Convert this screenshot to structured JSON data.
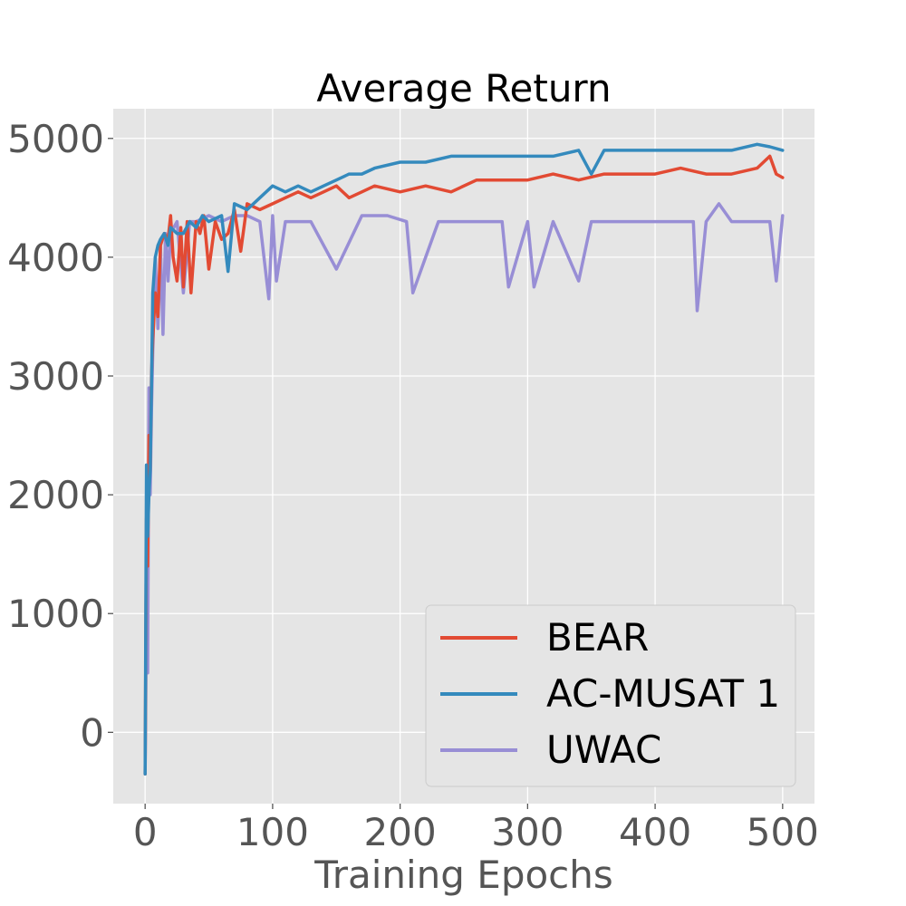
{
  "chart_data": {
    "type": "line",
    "title": "Average Return",
    "xlabel": "Training Epochs",
    "ylabel": "",
    "xlim": [
      -25,
      525
    ],
    "ylim": [
      -600,
      5250
    ],
    "xticks": [
      0,
      100,
      200,
      300,
      400,
      500
    ],
    "yticks": [
      0,
      1000,
      2000,
      3000,
      4000,
      5000
    ],
    "grid": true,
    "legend_position": "lower-right",
    "series": [
      {
        "name": "BEAR",
        "color": "#E24A33",
        "x": [
          0,
          1,
          2,
          3,
          4,
          5,
          6,
          8,
          10,
          12,
          15,
          18,
          20,
          22,
          25,
          28,
          30,
          33,
          36,
          40,
          43,
          46,
          50,
          55,
          60,
          65,
          70,
          75,
          80,
          90,
          100,
          110,
          120,
          130,
          140,
          150,
          160,
          170,
          180,
          200,
          220,
          240,
          260,
          280,
          300,
          320,
          340,
          360,
          380,
          400,
          420,
          440,
          460,
          480,
          490,
          495,
          500
        ],
        "y": [
          -350,
          1800,
          1400,
          2500,
          2200,
          3000,
          3300,
          3700,
          3500,
          4100,
          4200,
          4150,
          4350,
          4000,
          3800,
          4250,
          3750,
          4300,
          3700,
          4300,
          4200,
          4350,
          3900,
          4300,
          4150,
          4200,
          4400,
          4050,
          4450,
          4400,
          4450,
          4500,
          4550,
          4500,
          4550,
          4600,
          4500,
          4550,
          4600,
          4550,
          4600,
          4550,
          4650,
          4650,
          4650,
          4700,
          4650,
          4700,
          4700,
          4700,
          4750,
          4700,
          4700,
          4750,
          4850,
          4700,
          4670
        ]
      },
      {
        "name": "AC-MUSAT 1",
        "color": "#348ABD",
        "x": [
          0,
          1,
          2,
          3,
          4,
          5,
          6,
          8,
          10,
          12,
          15,
          18,
          20,
          25,
          30,
          35,
          40,
          45,
          50,
          60,
          65,
          70,
          80,
          90,
          100,
          110,
          120,
          130,
          140,
          150,
          160,
          170,
          180,
          200,
          220,
          240,
          260,
          280,
          300,
          320,
          340,
          350,
          360,
          380,
          400,
          420,
          440,
          460,
          480,
          490,
          500
        ],
        "y": [
          -350,
          2250,
          1650,
          2000,
          2200,
          2900,
          3700,
          4000,
          4100,
          4150,
          4200,
          4100,
          4250,
          4200,
          4200,
          4300,
          4250,
          4350,
          4300,
          4350,
          3880,
          4450,
          4400,
          4500,
          4600,
          4550,
          4600,
          4550,
          4600,
          4650,
          4700,
          4700,
          4750,
          4800,
          4800,
          4850,
          4850,
          4850,
          4850,
          4850,
          4900,
          4700,
          4900,
          4900,
          4900,
          4900,
          4900,
          4900,
          4950,
          4930,
          4900
        ]
      },
      {
        "name": "UWAC",
        "color": "#988ED5",
        "x": [
          0,
          1,
          2,
          3,
          4,
          5,
          6,
          8,
          10,
          12,
          14,
          16,
          18,
          20,
          25,
          30,
          35,
          40,
          50,
          60,
          70,
          80,
          90,
          97,
          100,
          103,
          110,
          130,
          150,
          170,
          190,
          205,
          210,
          230,
          250,
          280,
          285,
          300,
          305,
          320,
          340,
          350,
          360,
          380,
          400,
          420,
          430,
          433,
          440,
          450,
          460,
          480,
          490,
          495,
          500
        ],
        "y": [
          -350,
          1000,
          500,
          2900,
          2000,
          2700,
          3200,
          4000,
          3400,
          4100,
          3350,
          4200,
          3800,
          4200,
          4300,
          3700,
          4300,
          4300,
          4350,
          4300,
          4350,
          4350,
          4300,
          3650,
          4350,
          3800,
          4300,
          4300,
          3900,
          4350,
          4350,
          4300,
          3700,
          4300,
          4300,
          4300,
          3750,
          4300,
          3750,
          4300,
          3800,
          4300,
          4300,
          4300,
          4300,
          4300,
          4300,
          3550,
          4300,
          4450,
          4300,
          4300,
          4300,
          3800,
          4350
        ]
      }
    ]
  }
}
